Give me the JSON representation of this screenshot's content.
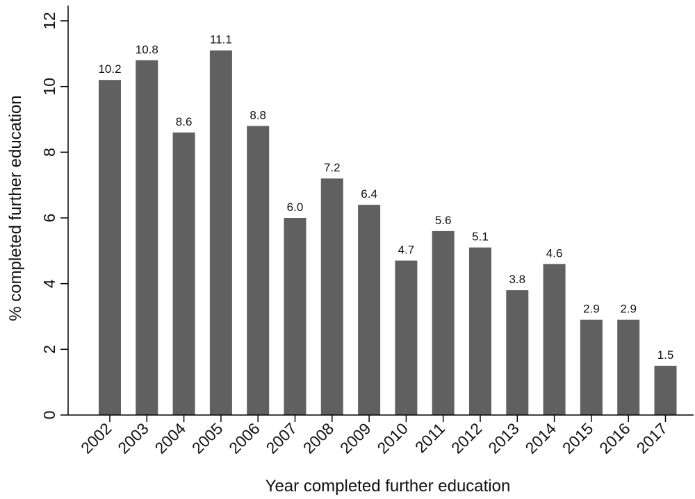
{
  "chart_data": {
    "type": "bar",
    "categories": [
      "2002",
      "2003",
      "2004",
      "2005",
      "2006",
      "2007",
      "2008",
      "2009",
      "2010",
      "2011",
      "2012",
      "2013",
      "2014",
      "2015",
      "2016",
      "2017"
    ],
    "values": [
      10.2,
      10.8,
      8.6,
      11.1,
      8.8,
      6.0,
      7.2,
      6.4,
      4.7,
      5.6,
      5.1,
      3.8,
      4.6,
      2.9,
      2.9,
      1.5
    ],
    "value_labels": [
      "10.2",
      "10.8",
      "8.6",
      "11.1",
      "8.8",
      "6.0",
      "7.2",
      "6.4",
      "4.7",
      "5.6",
      "5.1",
      "3.8",
      "4.6",
      "2.9",
      "2.9",
      "1.5"
    ],
    "title": "",
    "xlabel": "Year completed further education",
    "ylabel": "% completed further education",
    "ylim": [
      0,
      12
    ],
    "yticks": [
      0,
      2,
      4,
      6,
      8,
      10,
      12
    ],
    "ytick_labels": [
      "0",
      "2",
      "4",
      "6",
      "8",
      "10",
      "12"
    ],
    "grid": false,
    "bar_color": "#606060"
  }
}
